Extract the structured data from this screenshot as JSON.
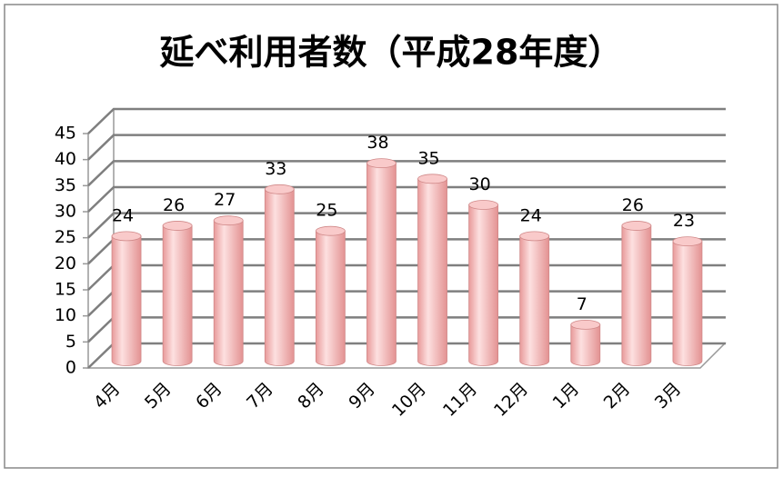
{
  "chart_data": {
    "type": "bar",
    "title": "延べ利用者数（平成28年度）",
    "categories": [
      "4月",
      "5月",
      "6月",
      "7月",
      "8月",
      "9月",
      "10月",
      "11月",
      "12月",
      "1月",
      "2月",
      "3月"
    ],
    "values": [
      24,
      26,
      27,
      33,
      25,
      38,
      35,
      30,
      24,
      7,
      26,
      23
    ],
    "color": "#f4b6b6",
    "ylim": [
      0,
      45
    ],
    "yticks": [
      0,
      5,
      10,
      15,
      20,
      25,
      30,
      35,
      40,
      45
    ],
    "grid": true
  }
}
